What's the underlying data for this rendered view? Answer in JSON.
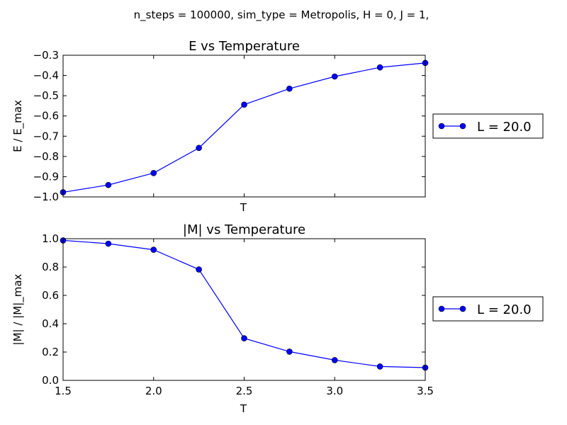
{
  "figure": {
    "suptitle": "n_steps = 100000, sim_type = Metropolis, H = 0, J = 1,"
  },
  "colors": {
    "series": "#0000ff",
    "axes": "#000000"
  },
  "chart_data": [
    {
      "type": "line",
      "title": "E vs Temperature",
      "xlabel": "T",
      "ylabel": "E / E_max",
      "xlim": [
        1.5,
        3.5
      ],
      "ylim": [
        -1.0,
        -0.3
      ],
      "xticks": [
        1.5,
        2.0,
        2.5,
        3.0,
        3.5
      ],
      "xtick_labels_shown": false,
      "yticks": [
        -1.0,
        -0.9,
        -0.8,
        -0.7,
        -0.6,
        -0.5,
        -0.4,
        -0.3
      ],
      "ytick_labels": [
        "−1.0",
        "−0.9",
        "−0.8",
        "−0.7",
        "−0.6",
        "−0.5",
        "−0.4",
        "−0.3"
      ],
      "legend_placement": "outside-right",
      "grid": false,
      "series": [
        {
          "name": "L = 20.0",
          "marker": "circle",
          "x": [
            1.5,
            1.75,
            2.0,
            2.25,
            2.5,
            2.75,
            3.0,
            3.25,
            3.5
          ],
          "y": [
            -0.977,
            -0.941,
            -0.882,
            -0.758,
            -0.544,
            -0.465,
            -0.405,
            -0.36,
            -0.338
          ]
        }
      ]
    },
    {
      "type": "line",
      "title": "|M| vs Temperature",
      "xlabel": "T",
      "ylabel": "|M| / |M|_max",
      "xlim": [
        1.5,
        3.5
      ],
      "ylim": [
        0.0,
        1.0
      ],
      "xticks": [
        1.5,
        2.0,
        2.5,
        3.0,
        3.5
      ],
      "xtick_labels": [
        "1.5",
        "2.0",
        "2.5",
        "3.0",
        "3.5"
      ],
      "xtick_labels_shown": true,
      "yticks": [
        0.0,
        0.2,
        0.4,
        0.6,
        0.8,
        1.0
      ],
      "ytick_labels": [
        "0.0",
        "0.2",
        "0.4",
        "0.6",
        "0.8",
        "1.0"
      ],
      "legend_placement": "outside-right",
      "grid": false,
      "series": [
        {
          "name": "L = 20.0",
          "marker": "circle",
          "x": [
            1.5,
            1.75,
            2.0,
            2.25,
            2.5,
            2.75,
            3.0,
            3.25,
            3.5
          ],
          "y": [
            0.988,
            0.965,
            0.922,
            0.783,
            0.297,
            0.203,
            0.143,
            0.098,
            0.09
          ]
        }
      ]
    }
  ]
}
